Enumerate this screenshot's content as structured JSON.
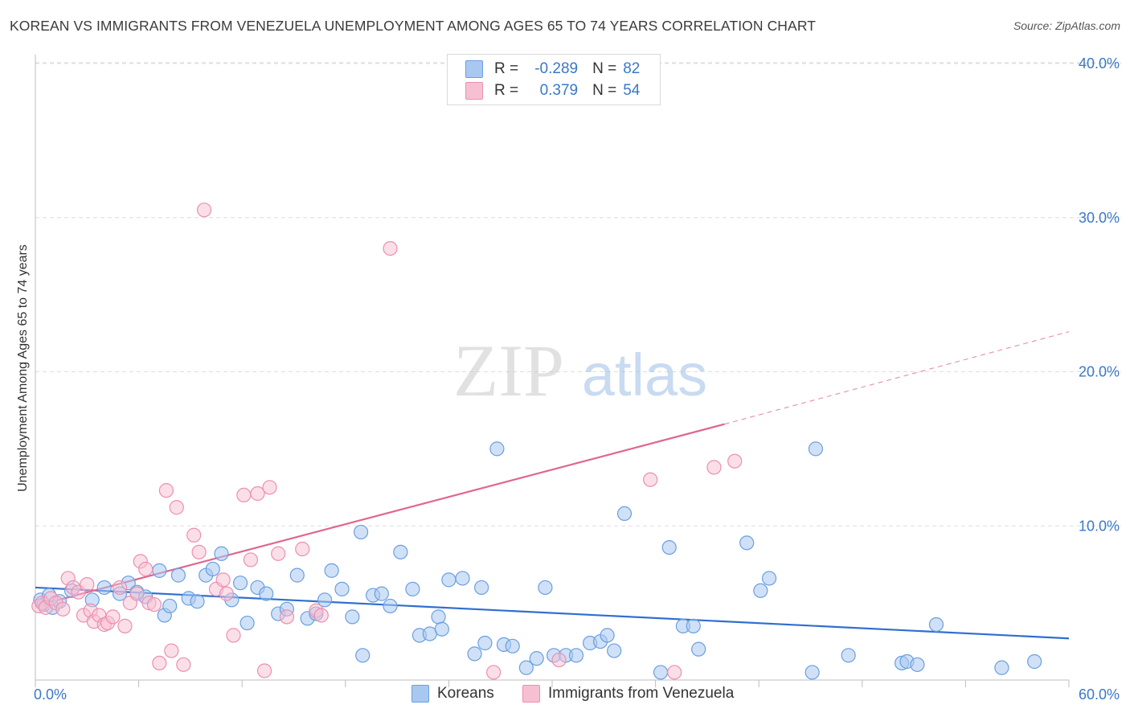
{
  "header": {
    "title": "KOREAN VS IMMIGRANTS FROM VENEZUELA UNEMPLOYMENT AMONG AGES 65 TO 74 YEARS CORRELATION CHART",
    "source": "Source: ZipAtlas.com"
  },
  "watermark": {
    "zip": "ZIP",
    "atlas": "atlas"
  },
  "legend": {
    "rows": [
      {
        "r_label": "R =",
        "r_value": "-0.289",
        "n_label": "N =",
        "n_value": "82"
      },
      {
        "r_label": "R =",
        "r_value": "0.379",
        "n_label": "N =",
        "n_value": "54"
      }
    ]
  },
  "colors": {
    "koreans_fill": "#a9c8f0",
    "koreans_stroke": "#6a9fe0",
    "koreans_line": "#2f6fcf",
    "venezuela_fill": "#f7bfd2",
    "venezuela_stroke": "#ec8fb0",
    "venezuela_line": "#e0668f",
    "axis_text": "#3a78c8",
    "grid": "#dedede"
  },
  "chart_data": {
    "type": "scatter",
    "title": "KOREAN VS IMMIGRANTS FROM VENEZUELA UNEMPLOYMENT AMONG AGES 65 TO 74 YEARS CORRELATION CHART",
    "xlabel": "",
    "ylabel": "Unemployment Among Ages 65 to 74 years",
    "xlim": [
      0,
      60
    ],
    "ylim": [
      0,
      40
    ],
    "x_tick_labels": [
      "0.0%",
      "60.0%"
    ],
    "y_ticks": [
      10,
      20,
      30,
      40
    ],
    "y_tick_labels": [
      "10.0%",
      "20.0%",
      "30.0%",
      "40.0%"
    ],
    "grid": true,
    "legend_position": "top-center",
    "series": [
      {
        "name": "Koreans",
        "r": -0.289,
        "n": 82,
        "trend": {
          "x": [
            0,
            60
          ],
          "y": [
            6.0,
            2.7
          ],
          "dashed_extension": false
        },
        "points": [
          [
            0.3,
            5.2
          ],
          [
            0.5,
            4.9
          ],
          [
            0.8,
            5.5
          ],
          [
            1.0,
            4.7
          ],
          [
            1.4,
            5.1
          ],
          [
            2.1,
            5.8
          ],
          [
            3.3,
            5.2
          ],
          [
            4.0,
            6.0
          ],
          [
            4.9,
            5.6
          ],
          [
            5.4,
            6.3
          ],
          [
            5.9,
            5.7
          ],
          [
            6.4,
            5.4
          ],
          [
            7.2,
            7.1
          ],
          [
            7.5,
            4.2
          ],
          [
            7.8,
            4.8
          ],
          [
            8.3,
            6.8
          ],
          [
            8.9,
            5.3
          ],
          [
            9.4,
            5.1
          ],
          [
            9.9,
            6.8
          ],
          [
            10.3,
            7.2
          ],
          [
            10.8,
            8.2
          ],
          [
            11.4,
            5.2
          ],
          [
            11.9,
            6.3
          ],
          [
            12.3,
            3.7
          ],
          [
            12.9,
            6.0
          ],
          [
            13.4,
            5.6
          ],
          [
            14.1,
            4.3
          ],
          [
            14.6,
            4.6
          ],
          [
            15.2,
            6.8
          ],
          [
            15.8,
            4.0
          ],
          [
            16.3,
            4.3
          ],
          [
            16.8,
            5.2
          ],
          [
            17.2,
            7.1
          ],
          [
            17.8,
            5.9
          ],
          [
            18.4,
            4.1
          ],
          [
            18.9,
            9.6
          ],
          [
            19.0,
            1.6
          ],
          [
            19.6,
            5.5
          ],
          [
            20.1,
            5.6
          ],
          [
            20.6,
            4.8
          ],
          [
            21.2,
            8.3
          ],
          [
            21.9,
            5.9
          ],
          [
            22.3,
            2.9
          ],
          [
            22.9,
            3.0
          ],
          [
            23.4,
            4.1
          ],
          [
            23.6,
            3.3
          ],
          [
            24.0,
            6.5
          ],
          [
            24.8,
            6.6
          ],
          [
            25.5,
            1.7
          ],
          [
            26.1,
            2.4
          ],
          [
            25.9,
            6.0
          ],
          [
            26.8,
            15.0
          ],
          [
            27.2,
            2.3
          ],
          [
            27.7,
            2.2
          ],
          [
            28.5,
            0.8
          ],
          [
            29.1,
            1.4
          ],
          [
            29.6,
            6.0
          ],
          [
            30.1,
            1.6
          ],
          [
            30.8,
            1.6
          ],
          [
            31.4,
            1.6
          ],
          [
            32.2,
            2.4
          ],
          [
            32.8,
            2.5
          ],
          [
            33.2,
            2.9
          ],
          [
            33.6,
            1.9
          ],
          [
            34.2,
            10.8
          ],
          [
            36.3,
            0.5
          ],
          [
            36.8,
            8.6
          ],
          [
            37.6,
            3.5
          ],
          [
            38.2,
            3.5
          ],
          [
            38.5,
            2.0
          ],
          [
            41.3,
            8.9
          ],
          [
            42.1,
            5.8
          ],
          [
            42.6,
            6.6
          ],
          [
            45.1,
            0.5
          ],
          [
            45.3,
            15.0
          ],
          [
            47.2,
            1.6
          ],
          [
            50.3,
            1.1
          ],
          [
            50.6,
            1.2
          ],
          [
            51.2,
            1.0
          ],
          [
            52.3,
            3.6
          ],
          [
            56.1,
            0.8
          ],
          [
            58.0,
            1.2
          ]
        ]
      },
      {
        "name": "Immigrants from Venezuela",
        "r": 0.379,
        "n": 54,
        "trend": {
          "x": [
            0,
            40
          ],
          "y": [
            4.8,
            16.6
          ],
          "dashed_extension": {
            "x": [
              40,
              60
            ],
            "y": [
              16.6,
              22.6
            ]
          }
        },
        "points": [
          [
            0.2,
            4.8
          ],
          [
            0.4,
            5.0
          ],
          [
            0.6,
            4.7
          ],
          [
            0.9,
            5.3
          ],
          [
            1.2,
            5.0
          ],
          [
            1.6,
            4.6
          ],
          [
            1.9,
            6.6
          ],
          [
            2.2,
            6.0
          ],
          [
            2.5,
            5.7
          ],
          [
            2.8,
            4.2
          ],
          [
            3.0,
            6.2
          ],
          [
            3.2,
            4.5
          ],
          [
            3.4,
            3.8
          ],
          [
            3.7,
            4.2
          ],
          [
            4.0,
            3.6
          ],
          [
            4.2,
            3.7
          ],
          [
            4.5,
            4.1
          ],
          [
            4.9,
            6.0
          ],
          [
            5.2,
            3.5
          ],
          [
            5.5,
            5.0
          ],
          [
            5.9,
            5.6
          ],
          [
            6.1,
            7.7
          ],
          [
            6.4,
            7.2
          ],
          [
            6.6,
            5.0
          ],
          [
            6.9,
            4.9
          ],
          [
            7.2,
            1.1
          ],
          [
            7.6,
            12.3
          ],
          [
            7.9,
            1.9
          ],
          [
            8.2,
            11.2
          ],
          [
            8.6,
            1.0
          ],
          [
            9.2,
            9.4
          ],
          [
            9.5,
            8.3
          ],
          [
            9.8,
            30.5
          ],
          [
            10.5,
            5.9
          ],
          [
            10.9,
            6.5
          ],
          [
            11.1,
            5.6
          ],
          [
            11.5,
            2.9
          ],
          [
            12.1,
            12.0
          ],
          [
            12.5,
            7.8
          ],
          [
            12.9,
            12.1
          ],
          [
            13.3,
            0.6
          ],
          [
            13.6,
            12.5
          ],
          [
            14.1,
            8.2
          ],
          [
            14.6,
            4.1
          ],
          [
            15.5,
            8.5
          ],
          [
            16.3,
            4.5
          ],
          [
            16.6,
            4.2
          ],
          [
            20.6,
            28.0
          ],
          [
            26.6,
            0.5
          ],
          [
            30.4,
            1.3
          ],
          [
            35.7,
            13.0
          ],
          [
            37.1,
            0.5
          ],
          [
            39.4,
            13.8
          ],
          [
            40.6,
            14.2
          ]
        ]
      }
    ]
  },
  "bottom_legend": {
    "items": [
      {
        "label": "Koreans"
      },
      {
        "label": "Immigrants from Venezuela"
      }
    ]
  }
}
